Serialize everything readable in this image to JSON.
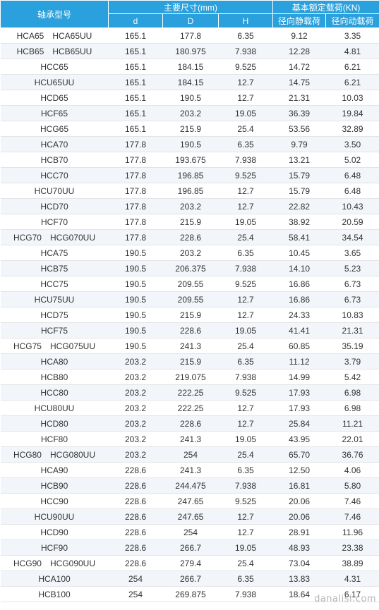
{
  "header": {
    "model": "轴承型号",
    "dims_group": "主要尺寸(mm)",
    "loads_group": "基本额定载荷(KN)",
    "d": "d",
    "D": "D",
    "H": "H",
    "static": "径向静载荷",
    "dynamic": "径向动载荷"
  },
  "rows": [
    [
      "HCA65　HCA65UU",
      "165.1",
      "177.8",
      "6.35",
      "9.12",
      "3.35"
    ],
    [
      "HCB65　HCB65UU",
      "165.1",
      "180.975",
      "7.938",
      "12.28",
      "4.81"
    ],
    [
      "HCC65",
      "165.1",
      "184.15",
      "9.525",
      "14.72",
      "6.21"
    ],
    [
      "HCU65UU",
      "165.1",
      "184.15",
      "12.7",
      "14.75",
      "6.21"
    ],
    [
      "HCD65",
      "165.1",
      "190.5",
      "12.7",
      "21.31",
      "10.03"
    ],
    [
      "HCF65",
      "165.1",
      "203.2",
      "19.05",
      "36.39",
      "19.84"
    ],
    [
      "HCG65",
      "165.1",
      "215.9",
      "25.4",
      "53.56",
      "32.89"
    ],
    [
      "HCA70",
      "177.8",
      "190.5",
      "6.35",
      "9.79",
      "3.50"
    ],
    [
      "HCB70",
      "177.8",
      "193.675",
      "7.938",
      "13.21",
      "5.02"
    ],
    [
      "HCC70",
      "177.8",
      "196.85",
      "9.525",
      "15.79",
      "6.48"
    ],
    [
      "HCU70UU",
      "177.8",
      "196.85",
      "12.7",
      "15.79",
      "6.48"
    ],
    [
      "HCD70",
      "177.8",
      "203.2",
      "12.7",
      "22.82",
      "10.43"
    ],
    [
      "HCF70",
      "177.8",
      "215.9",
      "19.05",
      "38.92",
      "20.59"
    ],
    [
      "HCG70　HCG070UU",
      "177.8",
      "228.6",
      "25.4",
      "58.41",
      "34.54"
    ],
    [
      "HCA75",
      "190.5",
      "203.2",
      "6.35",
      "10.45",
      "3.65"
    ],
    [
      "HCB75",
      "190.5",
      "206.375",
      "7.938",
      "14.10",
      "5.23"
    ],
    [
      "HCC75",
      "190.5",
      "209.55",
      "9.525",
      "16.86",
      "6.73"
    ],
    [
      "HCU75UU",
      "190.5",
      "209.55",
      "12.7",
      "16.86",
      "6.73"
    ],
    [
      "HCD75",
      "190.5",
      "215.9",
      "12.7",
      "24.33",
      "10.83"
    ],
    [
      "HCF75",
      "190.5",
      "228.6",
      "19.05",
      "41.41",
      "21.31"
    ],
    [
      "HCG75　HCG075UU",
      "190.5",
      "241.3",
      "25.4",
      "60.85",
      "35.19"
    ],
    [
      "HCA80",
      "203.2",
      "215.9",
      "6.35",
      "11.12",
      "3.79"
    ],
    [
      "HCB80",
      "203.2",
      "219.075",
      "7.938",
      "14.99",
      "5.42"
    ],
    [
      "HCC80",
      "203.2",
      "222.25",
      "9.525",
      "17.93",
      "6.98"
    ],
    [
      "HCU80UU",
      "203.2",
      "222.25",
      "12.7",
      "17.93",
      "6.98"
    ],
    [
      "HCD80",
      "203.2",
      "228.6",
      "12.7",
      "25.84",
      "11.21"
    ],
    [
      "HCF80",
      "203.2",
      "241.3",
      "19.05",
      "43.95",
      "22.01"
    ],
    [
      "HCG80　HCG080UU",
      "203.2",
      "254",
      "25.4",
      "65.70",
      "36.76"
    ],
    [
      "HCA90",
      "228.6",
      "241.3",
      "6.35",
      "12.50",
      "4.06"
    ],
    [
      "HCB90",
      "228.6",
      "244.475",
      "7.938",
      "16.81",
      "5.80"
    ],
    [
      "HCC90",
      "228.6",
      "247.65",
      "9.525",
      "20.06",
      "7.46"
    ],
    [
      "HCU90UU",
      "228.6",
      "247.65",
      "12.7",
      "20.06",
      "7.46"
    ],
    [
      "HCD90",
      "228.6",
      "254",
      "12.7",
      "28.91",
      "11.96"
    ],
    [
      "HCF90",
      "228.6",
      "266.7",
      "19.05",
      "48.93",
      "23.38"
    ],
    [
      "HCG90　HCG090UU",
      "228.6",
      "279.4",
      "25.4",
      "73.04",
      "38.89"
    ],
    [
      "HCA100",
      "254",
      "266.7",
      "6.35",
      "13.83",
      "4.31"
    ],
    [
      "HCB100",
      "254",
      "269.875",
      "7.938",
      "18.64",
      "6.17"
    ]
  ],
  "watermark": "danalisi.com"
}
